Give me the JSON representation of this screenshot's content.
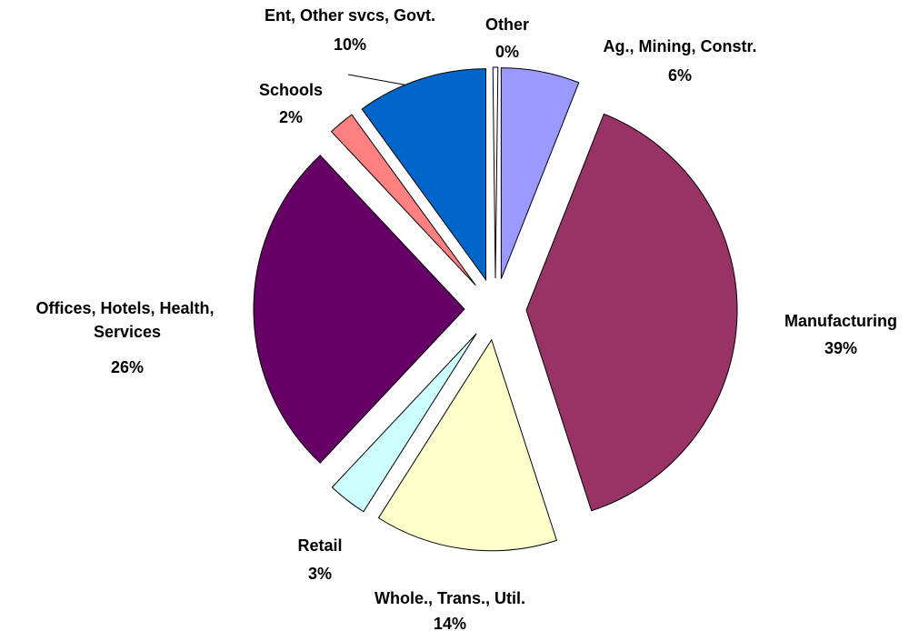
{
  "chart_data": {
    "type": "pie",
    "categories": [
      "Ag., Mining, Constr.",
      "Manufacturing",
      "Whole., Trans., Util.",
      "Retail",
      "Offices, Hotels, Health, Services",
      "Schools",
      "Ent, Other svcs, Govt.",
      "Other"
    ],
    "values": [
      6,
      39,
      14,
      3,
      26,
      2,
      10,
      0
    ],
    "value_labels": [
      "6%",
      "39%",
      "14%",
      "3%",
      "26%",
      "2%",
      "10%",
      "0%"
    ],
    "colors": [
      "#9999ff",
      "#993366",
      "#ffffcc",
      "#ccffff",
      "#660066",
      "#ff8080",
      "#0066cc",
      "#ffffff"
    ]
  }
}
